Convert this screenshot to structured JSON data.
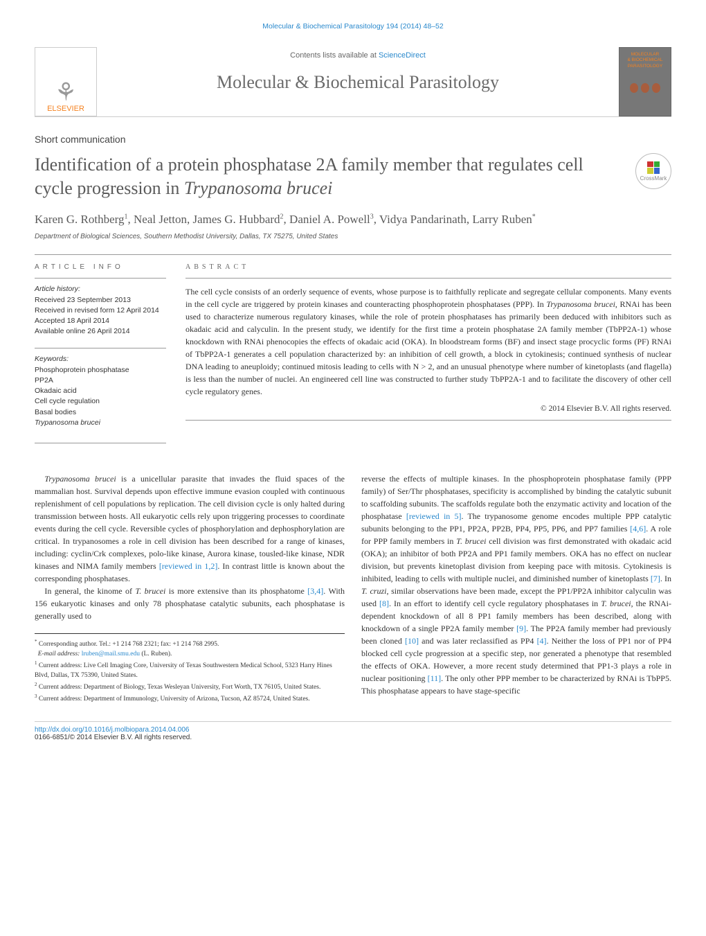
{
  "running_head": "Molecular & Biochemical Parasitology 194 (2014) 48–52",
  "header": {
    "contents_text": "Contents lists available at ",
    "contents_link": "ScienceDirect",
    "journal_title": "Molecular & Biochemical Parasitology",
    "publisher": "ELSEVIER",
    "cover_line1": "MOLECULAR",
    "cover_line2": "& BIOCHEMICAL",
    "cover_line3": "PARASITOLOGY"
  },
  "article_type": "Short communication",
  "title_html": "Identification of a protein phosphatase 2A family member that regulates cell cycle progression in <em>Trypanosoma brucei</em>",
  "crossmark_label": "CrossMark",
  "authors_html": "Karen G. Rothberg<sup>1</sup>, Neal Jetton, James G. Hubbard<sup>2</sup>, Daniel A. Powell<sup>3</sup>, Vidya Pandarinath, Larry Ruben<sup>*</sup>",
  "affiliation": "Department of Biological Sciences, Southern Methodist University, Dallas, TX 75275, United States",
  "info": {
    "heading": "ARTICLE INFO",
    "history_label": "Article history:",
    "received": "Received 23 September 2013",
    "revised": "Received in revised form 12 April 2014",
    "accepted": "Accepted 18 April 2014",
    "online": "Available online 26 April 2014",
    "keywords_label": "Keywords:",
    "keywords_html": "Phosphoprotein phosphatase<br>PP2A<br>Okadaic acid<br>Cell cycle regulation<br>Basal bodies<br><em>Trypanosoma brucei</em>"
  },
  "abstract": {
    "heading": "ABSTRACT",
    "text_html": "The cell cycle consists of an orderly sequence of events, whose purpose is to faithfully replicate and segregate cellular components. Many events in the cell cycle are triggered by protein kinases and counteracting phosphoprotein phosphatases (PPP). In <em>Trypanosoma brucei</em>, RNAi has been used to characterize numerous regulatory kinases, while the role of protein phosphatases has primarily been deduced with inhibitors such as okadaic acid and calyculin. In the present study, we identify for the first time a protein phosphatase 2A family member (TbPP2A-1) whose knockdown with RNAi phenocopies the effects of okadaic acid (OKA). In bloodstream forms (BF) and insect stage procyclic forms (PF) RNAi of TbPP2A-1 generates a cell population characterized by: an inhibition of cell growth, a block in cytokinesis; continued synthesis of nuclear DNA leading to aneuploidy; continued mitosis leading to cells with N > 2, and an unusual phenotype where number of kinetoplasts (and flagella) is less than the number of nuclei. An engineered cell line was constructed to further study TbPP2A-1 and to facilitate the discovery of other cell cycle regulatory genes.",
    "copyright": "© 2014 Elsevier B.V. All rights reserved."
  },
  "body": {
    "col1_p1_html": "<em>Trypanosoma brucei</em> is a unicellular parasite that invades the fluid spaces of the mammalian host. Survival depends upon effective immune evasion coupled with continuous replenishment of cell populations by replication. The cell division cycle is only halted during transmission between hosts. All eukaryotic cells rely upon triggering processes to coordinate events during the cell cycle. Reversible cycles of phosphorylation and dephosphorylation are critical. In trypanosomes a role in cell division has been described for a range of kinases, including: cyclin/Crk complexes, polo-like kinase, Aurora kinase, tousled-like kinase, NDR kinases and NIMA family members <span class=\"ref\">[reviewed in 1,2]</span>. In contrast little is known about the corresponding phosphatases.",
    "col1_p2_html": "In general, the kinome of <em>T. brucei</em> is more extensive than its phosphatome <span class=\"ref\">[3,4]</span>. With 156 eukaryotic kinases and only 78 phosphatase catalytic subunits, each phosphatase is generally used to",
    "col2_p1_html": "reverse the effects of multiple kinases. In the phosphoprotein phosphatase family (PPP family) of Ser/Thr phosphatases, specificity is accomplished by binding the catalytic subunit to scaffolding subunits. The scaffolds regulate both the enzymatic activity and location of the phosphatase <span class=\"ref\">[reviewed in 5]</span>. The trypanosome genome encodes multiple PPP catalytic subunits belonging to the PP1, PP2A, PP2B, PP4, PP5, PP6, and PP7 families <span class=\"ref\">[4,6]</span>. A role for PPP family members in <em>T. brucei</em> cell division was first demonstrated with okadaic acid (OKA); an inhibitor of both PP2A and PP1 family members. OKA has no effect on nuclear division, but prevents kinetoplast division from keeping pace with mitosis. Cytokinesis is inhibited, leading to cells with multiple nuclei, and diminished number of kinetoplasts <span class=\"ref\">[7]</span>. In <em>T. cruzi</em>, similar observations have been made, except the PP1/PP2A inhibitor calyculin was used <span class=\"ref\">[8]</span>. In an effort to identify cell cycle regulatory phosphatases in <em>T. brucei</em>, the RNAi-dependent knockdown of all 8 PP1 family members has been described, along with knockdown of a single PP2A family member <span class=\"ref\">[9]</span>. The PP2A family member had previously been cloned <span class=\"ref\">[10]</span> and was later reclassified as PP4 <span class=\"ref\">[4]</span>. Neither the loss of PP1 nor of PP4 blocked cell cycle progression at a specific step, nor generated a phenotype that resembled the effects of OKA. However, a more recent study determined that PP1-3 plays a role in nuclear positioning <span class=\"ref\">[11]</span>. The only other PPP member to be characterized by RNAi is TbPP5. This phosphatase appears to have stage-specific"
  },
  "footnotes": {
    "corr_html": "<sup>*</sup> Corresponding author. Tel.: +1 214 768 2321; fax: +1 214 768 2995.",
    "email_html": "&nbsp;&nbsp;<em>E-mail address:</em> <a>lruben@mail.smu.edu</a> (L. Ruben).",
    "fn1_html": "<sup>1</sup> Current address: Live Cell Imaging Core, University of Texas Southwestern Medical School, 5323 Harry Hines Blvd, Dallas, TX 75390, United States.",
    "fn2_html": "<sup>2</sup> Current address: Department of Biology, Texas Wesleyan University, Fort Worth, TX 76105, United States.",
    "fn3_html": "<sup>3</sup> Current address: Department of Immunology, University of Arizona, Tucson, AZ 85724, United States."
  },
  "footer": {
    "doi": "http://dx.doi.org/10.1016/j.molbiopara.2014.04.006",
    "issn_line": "0166-6851/© 2014 Elsevier B.V. All rights reserved."
  },
  "colors": {
    "link": "#2988cc",
    "brand_orange": "#f58220",
    "text_grey": "#5a5a5a"
  }
}
